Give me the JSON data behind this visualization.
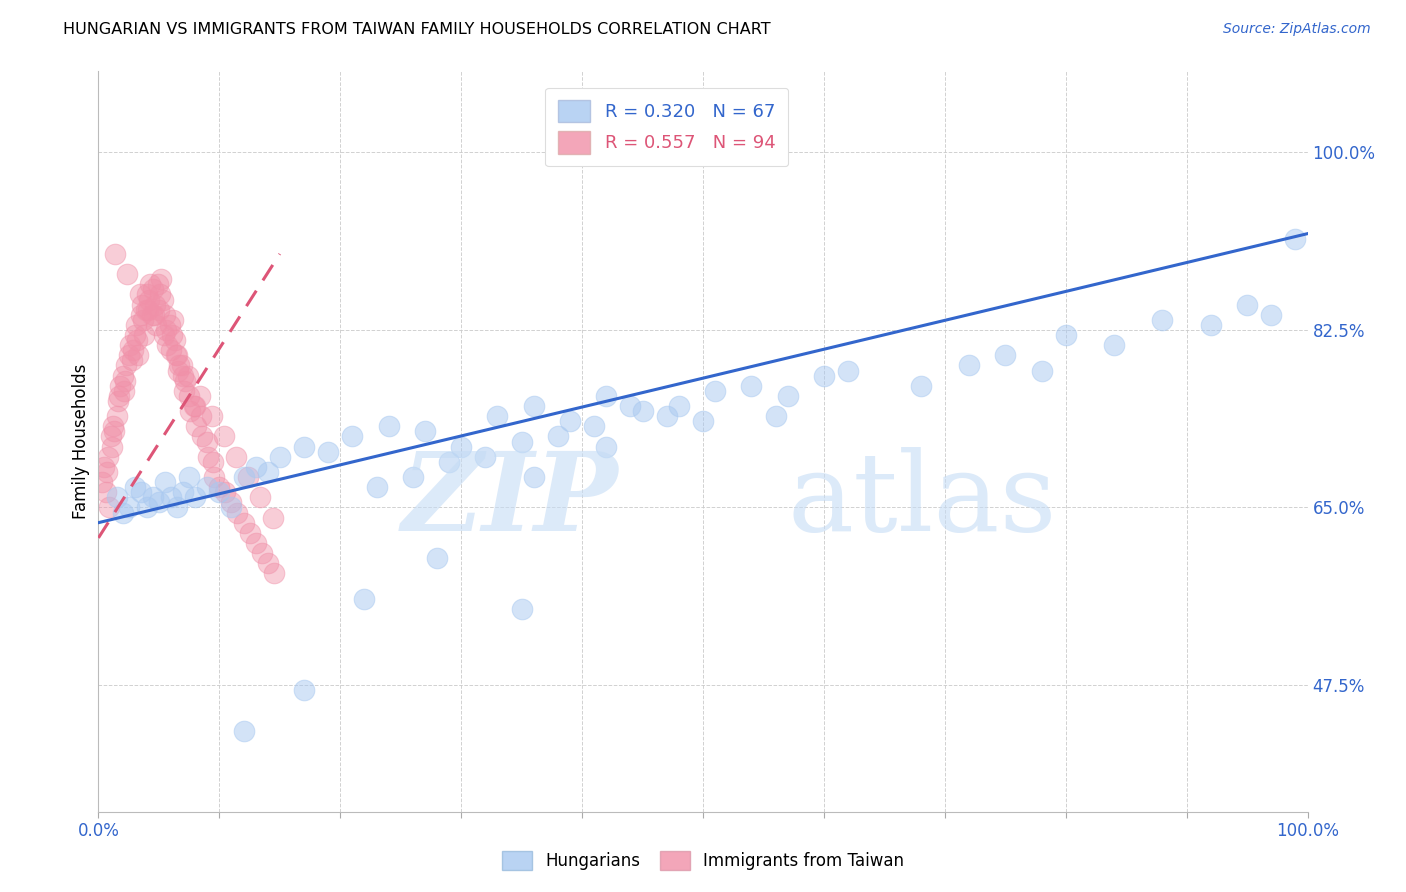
{
  "title": "HUNGARIAN VS IMMIGRANTS FROM TAIWAN FAMILY HOUSEHOLDS CORRELATION CHART",
  "source": "Source: ZipAtlas.com",
  "ylabel": "Family Households",
  "legend_blue_label": "Hungarians",
  "legend_pink_label": "Immigrants from Taiwan",
  "R_blue": 0.32,
  "N_blue": 67,
  "R_pink": 0.557,
  "N_pink": 94,
  "blue_color": "#A8C8F0",
  "pink_color": "#F090A8",
  "blue_line_color": "#3366CC",
  "pink_line_color": "#DD5577",
  "ytick_vals": [
    47.5,
    65.0,
    82.5,
    100.0
  ],
  "xlim": [
    0,
    100
  ],
  "ylim": [
    35,
    108
  ],
  "blue_trend_x": [
    0,
    100
  ],
  "blue_trend_y": [
    63.5,
    92.0
  ],
  "pink_trend_x": [
    0,
    15
  ],
  "pink_trend_y": [
    62.0,
    90.0
  ],
  "blue_x": [
    1.5,
    2.0,
    2.5,
    3.0,
    3.5,
    4.0,
    4.5,
    5.0,
    5.5,
    6.0,
    6.5,
    7.0,
    7.5,
    8.0,
    9.0,
    10.0,
    11.0,
    12.0,
    13.0,
    14.0,
    15.0,
    17.0,
    19.0,
    21.0,
    24.0,
    27.0,
    30.0,
    33.0,
    36.0,
    39.0,
    42.0,
    45.0,
    48.0,
    51.0,
    54.0,
    57.0,
    60.0,
    36.0,
    42.0,
    50.0,
    56.0,
    62.0,
    68.0,
    72.0,
    75.0,
    78.0,
    80.0,
    84.0,
    88.0,
    92.0,
    95.0,
    97.0,
    99.0,
    23.0,
    26.0,
    29.0,
    32.0,
    35.0,
    38.0,
    41.0,
    44.0,
    47.0,
    12.0,
    17.0,
    22.0,
    28.0,
    35.0
  ],
  "blue_y": [
    66.0,
    64.5,
    65.0,
    67.0,
    66.5,
    65.0,
    66.0,
    65.5,
    67.5,
    66.0,
    65.0,
    66.5,
    68.0,
    66.0,
    67.0,
    66.5,
    65.0,
    68.0,
    69.0,
    68.5,
    70.0,
    71.0,
    70.5,
    72.0,
    73.0,
    72.5,
    71.0,
    74.0,
    75.0,
    73.5,
    76.0,
    74.5,
    75.0,
    76.5,
    77.0,
    76.0,
    78.0,
    68.0,
    71.0,
    73.5,
    74.0,
    78.5,
    77.0,
    79.0,
    80.0,
    78.5,
    82.0,
    81.0,
    83.5,
    83.0,
    85.0,
    84.0,
    91.5,
    67.0,
    68.0,
    69.5,
    70.0,
    71.5,
    72.0,
    73.0,
    75.0,
    74.0,
    43.0,
    47.0,
    56.0,
    60.0,
    55.0
  ],
  "pink_x": [
    0.3,
    0.5,
    0.7,
    0.8,
    1.0,
    1.1,
    1.2,
    1.3,
    1.5,
    1.6,
    1.7,
    1.8,
    2.0,
    2.1,
    2.2,
    2.3,
    2.5,
    2.6,
    2.8,
    3.0,
    3.1,
    3.2,
    3.3,
    3.5,
    3.6,
    3.7,
    3.8,
    4.0,
    4.1,
    4.2,
    4.3,
    4.5,
    4.6,
    4.7,
    4.8,
    5.0,
    5.1,
    5.2,
    5.3,
    5.5,
    5.6,
    5.7,
    6.0,
    6.1,
    6.2,
    6.3,
    6.5,
    6.6,
    6.7,
    7.0,
    7.1,
    7.2,
    7.5,
    7.6,
    8.0,
    8.1,
    8.5,
    8.6,
    9.0,
    9.1,
    9.5,
    9.6,
    10.0,
    10.5,
    11.0,
    11.5,
    12.0,
    12.5,
    13.0,
    13.5,
    14.0,
    14.5,
    2.9,
    3.9,
    4.9,
    5.9,
    6.9,
    7.9,
    1.4,
    2.4,
    3.4,
    4.4,
    5.4,
    6.4,
    7.4,
    8.4,
    9.4,
    10.4,
    11.4,
    12.4,
    13.4,
    14.4,
    0.6,
    0.9
  ],
  "pink_y": [
    67.5,
    69.0,
    68.5,
    70.0,
    72.0,
    71.0,
    73.0,
    72.5,
    74.0,
    75.5,
    76.0,
    77.0,
    78.0,
    76.5,
    77.5,
    79.0,
    80.0,
    81.0,
    79.5,
    82.0,
    83.0,
    81.5,
    80.0,
    84.0,
    85.0,
    83.5,
    82.0,
    86.0,
    84.5,
    85.5,
    87.0,
    86.5,
    84.0,
    85.0,
    83.0,
    84.5,
    86.0,
    87.5,
    85.5,
    84.0,
    82.5,
    81.0,
    80.5,
    82.0,
    83.5,
    81.5,
    80.0,
    78.5,
    79.0,
    78.0,
    76.5,
    77.5,
    76.0,
    74.5,
    75.0,
    73.0,
    74.0,
    72.0,
    71.5,
    70.0,
    69.5,
    68.0,
    67.0,
    66.5,
    65.5,
    64.5,
    63.5,
    62.5,
    61.5,
    60.5,
    59.5,
    58.5,
    80.5,
    84.5,
    87.0,
    83.0,
    79.0,
    75.0,
    90.0,
    88.0,
    86.0,
    84.0,
    82.0,
    80.0,
    78.0,
    76.0,
    74.0,
    72.0,
    70.0,
    68.0,
    66.0,
    64.0,
    66.5,
    65.0
  ]
}
